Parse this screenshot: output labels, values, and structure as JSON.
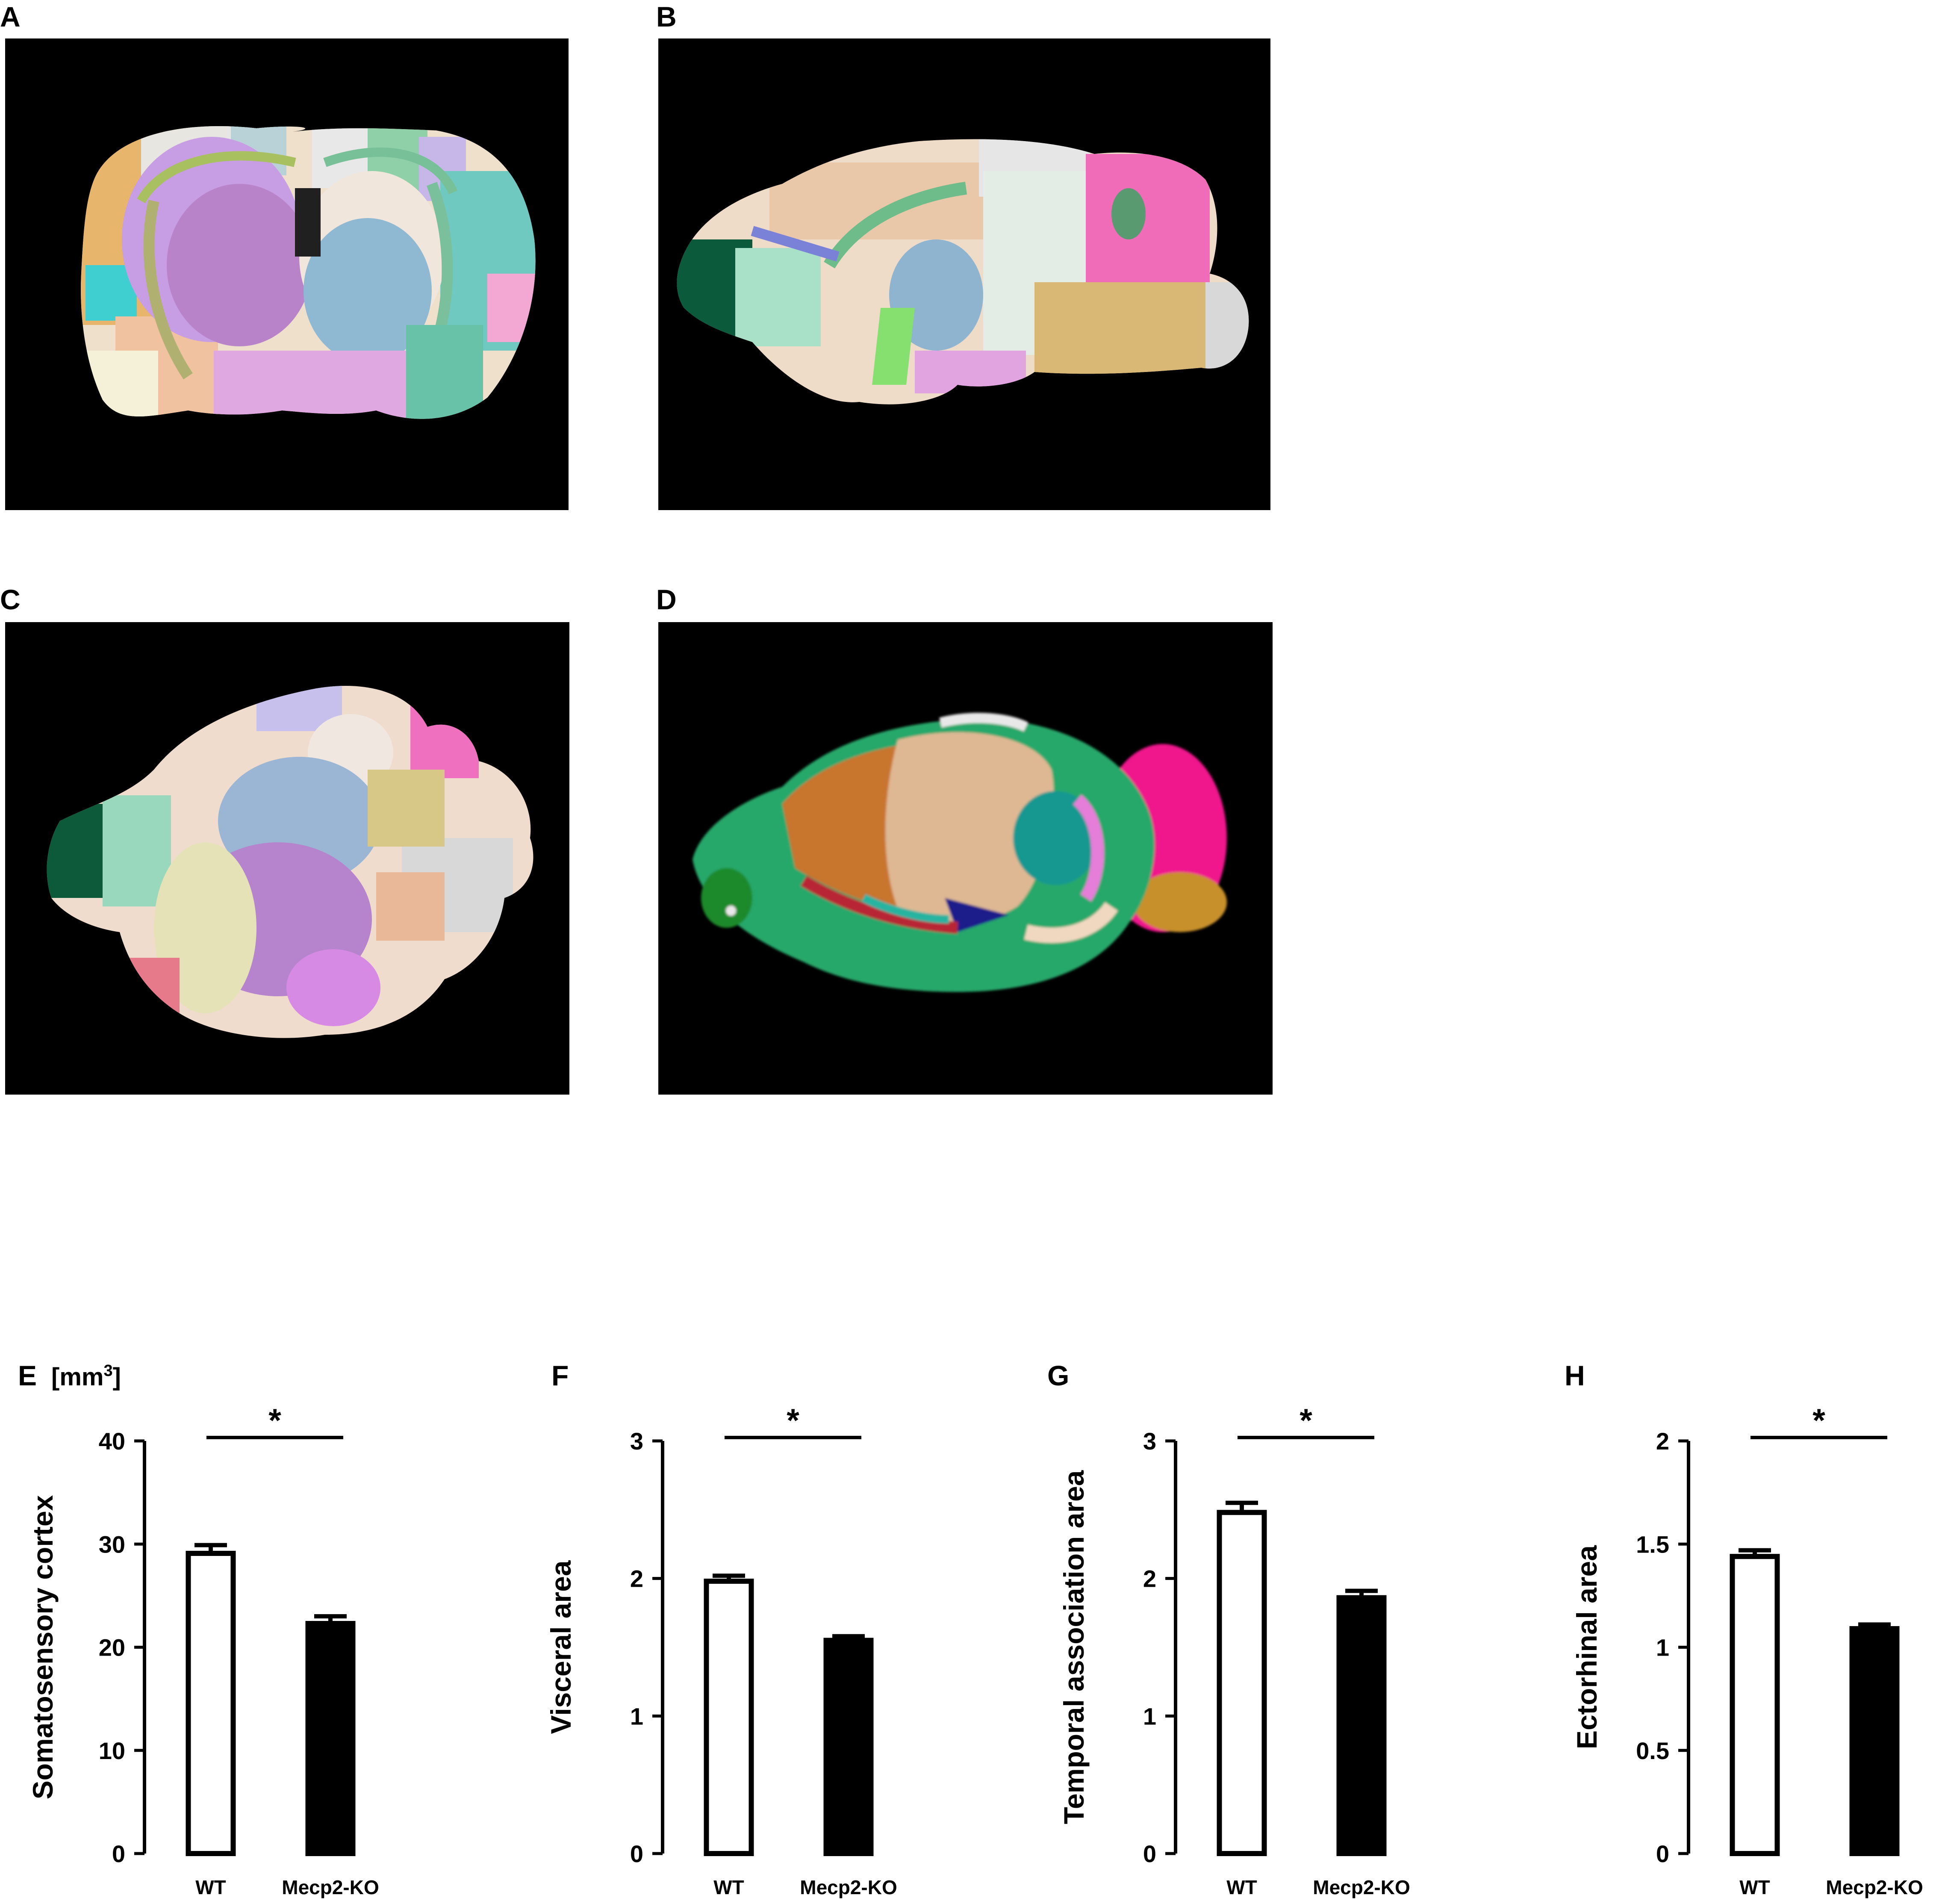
{
  "panels": {
    "A": "A",
    "B": "B",
    "C": "C",
    "D": "D"
  },
  "unit": {
    "prefix": "[mm",
    "sup": "3",
    "suffix": "]"
  },
  "colors": {
    "background": "#ffffff",
    "image_bg": "#000000",
    "bar_wt_fill": "#ffffff",
    "bar_ko_fill": "#000000",
    "stroke": "#000000"
  },
  "chart_data": [
    {
      "type": "bar",
      "panel": "E",
      "ylabel": "Somatosensory cortex",
      "categories": [
        "WT",
        "Mecp2-KO"
      ],
      "values": [
        29.1,
        22.3
      ],
      "errors": [
        0.8,
        0.7
      ],
      "ylim": [
        0,
        40
      ],
      "yticks": [
        "0",
        "10",
        "20",
        "30",
        "40"
      ],
      "significance": "*"
    },
    {
      "type": "bar",
      "panel": "F",
      "ylabel": "Visceral area",
      "categories": [
        "WT",
        "Mecp2-KO"
      ],
      "values": [
        1.98,
        1.55
      ],
      "errors": [
        0.04,
        0.03
      ],
      "ylim": [
        0,
        3
      ],
      "yticks": [
        "0",
        "1",
        "2",
        "3"
      ],
      "significance": "*"
    },
    {
      "type": "bar",
      "panel": "G",
      "ylabel": "Temporal association area",
      "categories": [
        "WT",
        "Mecp2-KO"
      ],
      "values": [
        2.48,
        1.86
      ],
      "errors": [
        0.07,
        0.05
      ],
      "ylim": [
        0,
        3
      ],
      "yticks": [
        "0",
        "1",
        "2",
        "3"
      ],
      "significance": "*"
    },
    {
      "type": "bar",
      "panel": "H",
      "ylabel": "Ectorhinal area",
      "categories": [
        "WT",
        "Mecp2-KO"
      ],
      "values": [
        1.44,
        1.09
      ],
      "errors": [
        0.03,
        0.02
      ],
      "ylim": [
        0,
        2
      ],
      "yticks": [
        "0",
        "0.5",
        "1",
        "1.5",
        "2"
      ],
      "significance": "*"
    }
  ]
}
